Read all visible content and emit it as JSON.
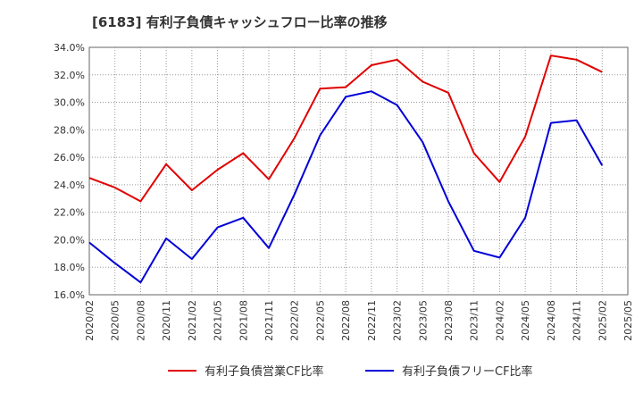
{
  "chart_data": {
    "type": "line",
    "title": "[6183]  有利子負債キャッシュフロー比率の推移",
    "xlabel": "",
    "ylabel": "",
    "x": [
      "2020/02",
      "2020/05",
      "2020/08",
      "2020/11",
      "2021/02",
      "2021/05",
      "2021/08",
      "2021/11",
      "2022/02",
      "2022/05",
      "2022/08",
      "2022/11",
      "2023/02",
      "2023/05",
      "2023/08",
      "2023/11",
      "2024/02",
      "2024/05",
      "2024/08",
      "2024/11",
      "2025/02",
      "2025/05"
    ],
    "ylim": [
      16.0,
      34.0
    ],
    "yticks": [
      "16.0%",
      "18.0%",
      "20.0%",
      "22.0%",
      "24.0%",
      "26.0%",
      "28.0%",
      "30.0%",
      "32.0%",
      "34.0%"
    ],
    "grid": true,
    "legend_position": "bottom",
    "series": [
      {
        "name": "有利子負債営業CF比率",
        "color": "#e00000",
        "values": [
          24.5,
          23.8,
          22.8,
          25.5,
          23.6,
          25.1,
          26.3,
          24.4,
          27.4,
          31.0,
          31.1,
          32.7,
          33.1,
          31.5,
          30.7,
          26.3,
          24.2,
          27.5,
          33.4,
          33.1,
          32.2,
          null
        ]
      },
      {
        "name": "有利子負債フリーCF比率",
        "color": "#0000d8",
        "values": [
          19.8,
          18.3,
          16.9,
          20.1,
          18.6,
          20.9,
          21.6,
          19.4,
          23.3,
          27.6,
          30.4,
          30.8,
          29.8,
          27.1,
          22.8,
          19.2,
          18.7,
          21.6,
          28.5,
          28.7,
          25.4,
          null
        ]
      }
    ]
  }
}
